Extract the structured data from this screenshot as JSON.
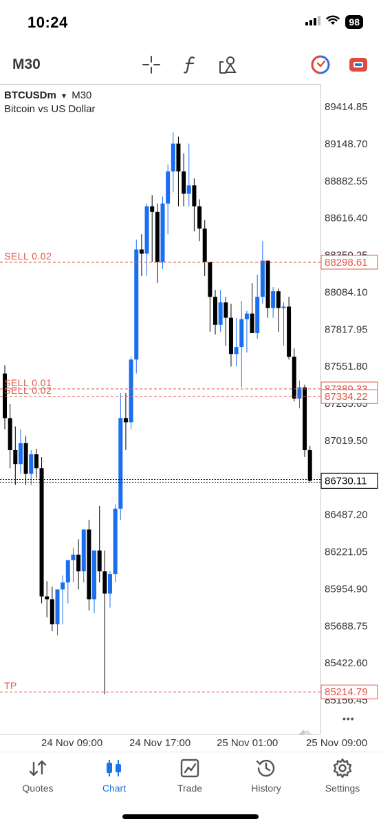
{
  "status_bar": {
    "time": "10:24",
    "battery": "98",
    "icons": [
      "cellular-signal-icon",
      "wifi-icon",
      "battery-icon"
    ]
  },
  "toolbar": {
    "timeframe": "M30",
    "icons": [
      "crosshair-icon",
      "function-icon",
      "objects-icon",
      "one-click-trading-icon",
      "account-icon"
    ]
  },
  "chart": {
    "symbol": "BTCUSDm",
    "dropdown_marker": "▾",
    "timeframe": "M30",
    "description": "Bitcoin vs US Dollar",
    "colors": {
      "bull": "#1a6ef0",
      "bear": "#000000",
      "order_line": "#e05545",
      "price_line": "#000000"
    },
    "price_labels": [
      "89414.85",
      "89148.70",
      "88882.55",
      "88616.40",
      "88350.25",
      "88084.10",
      "87817.95",
      "87551.80",
      "87285.65",
      "87019.50",
      "86487.20",
      "86221.05",
      "85954.90",
      "85688.75",
      "85422.60",
      "85156.45"
    ],
    "orders": [
      {
        "label": "SELL 0.02",
        "price_tag": "88298.61",
        "price": 88298.61
      },
      {
        "label": "SELL 0.01",
        "price_tag": "87389.33",
        "price": 87389.33
      },
      {
        "label": "SELL 0.02",
        "price_tag": "87334.22",
        "price": 87334.22
      },
      {
        "label": "TP",
        "price_tag": "85214.79",
        "price": 85214.79
      }
    ],
    "current_price": "86730.11",
    "time_labels": [
      "24 Nov 09:00",
      "24 Nov 17:00",
      "25 Nov 01:00",
      "25 Nov 09:00"
    ]
  },
  "chart_data": {
    "type": "candlestick",
    "symbol": "BTCUSDm",
    "timeframe": "M30",
    "ylim": [
      85100,
      89550
    ],
    "candles_ohlc": [
      [
        87500,
        87560,
        87100,
        87180
      ],
      [
        87180,
        87280,
        86820,
        86950
      ],
      [
        86950,
        87120,
        86700,
        86850
      ],
      [
        86850,
        87100,
        86780,
        87000
      ],
      [
        87000,
        87050,
        86700,
        86780
      ],
      [
        86780,
        86950,
        86700,
        86920
      ],
      [
        86920,
        86960,
        86750,
        86820
      ],
      [
        86820,
        86900,
        85850,
        85900
      ],
      [
        85900,
        86010,
        85750,
        85880
      ],
      [
        85880,
        85970,
        85650,
        85700
      ],
      [
        85700,
        85950,
        85620,
        85950
      ],
      [
        85950,
        86050,
        85700,
        86000
      ],
      [
        86000,
        86150,
        85850,
        86160
      ],
      [
        86160,
        86250,
        86000,
        86200
      ],
      [
        86200,
        86310,
        85950,
        86080
      ],
      [
        86080,
        86380,
        86000,
        86380
      ],
      [
        86380,
        86450,
        85800,
        85880
      ],
      [
        85880,
        86230,
        85780,
        86230
      ],
      [
        86230,
        86550,
        86000,
        86080
      ],
      [
        86080,
        86230,
        85200,
        85920
      ],
      [
        85920,
        86080,
        85820,
        86060
      ],
      [
        86060,
        86560,
        86000,
        86530
      ],
      [
        86530,
        87360,
        86450,
        87180
      ],
      [
        87180,
        87360,
        86950,
        87150
      ],
      [
        87150,
        87620,
        87100,
        87600
      ],
      [
        87600,
        88460,
        87500,
        88390
      ],
      [
        88390,
        88500,
        88200,
        88360
      ],
      [
        88360,
        88720,
        88200,
        88700
      ],
      [
        88700,
        88780,
        88300,
        88660
      ],
      [
        88660,
        88720,
        88150,
        88300
      ],
      [
        88300,
        88770,
        88250,
        88720
      ],
      [
        88720,
        89000,
        88500,
        88950
      ],
      [
        88950,
        89230,
        88800,
        89150
      ],
      [
        89150,
        89200,
        88700,
        88950
      ],
      [
        88950,
        89080,
        88700,
        88790
      ],
      [
        88790,
        89150,
        88700,
        88850
      ],
      [
        88850,
        88900,
        88520,
        88700
      ],
      [
        88700,
        88750,
        88450,
        88540
      ],
      [
        88540,
        88600,
        88200,
        88300
      ],
      [
        88300,
        88300,
        87800,
        88050
      ],
      [
        88050,
        88100,
        87780,
        87850
      ],
      [
        87850,
        88100,
        87800,
        88010
      ],
      [
        88010,
        88050,
        87700,
        87900
      ],
      [
        87900,
        88000,
        87550,
        87640
      ],
      [
        87640,
        87900,
        87550,
        87690
      ],
      [
        87690,
        88020,
        87400,
        87890
      ],
      [
        87890,
        87950,
        87650,
        87930
      ],
      [
        87930,
        88150,
        87800,
        87790
      ],
      [
        87790,
        88210,
        87750,
        88050
      ],
      [
        88050,
        88450,
        88000,
        88310
      ],
      [
        88310,
        88310,
        87900,
        87970
      ],
      [
        87970,
        88120,
        87900,
        88090
      ],
      [
        88090,
        88110,
        87800,
        87970
      ],
      [
        87970,
        88010,
        87700,
        87980
      ],
      [
        87980,
        88050,
        87600,
        87620
      ],
      [
        87620,
        87680,
        87300,
        87320
      ],
      [
        87320,
        87450,
        87250,
        87400
      ],
      [
        87400,
        87420,
        86900,
        86950
      ],
      [
        86950,
        86980,
        86720,
        86730
      ]
    ],
    "price_lines": [
      88298.61,
      87389.33,
      87334.22,
      85214.79
    ],
    "current_price": 86730.11,
    "grid": false
  },
  "more_button": "•••",
  "tabs": [
    {
      "label": "Quotes",
      "icon": "quotes-arrows-icon",
      "active": false
    },
    {
      "label": "Chart",
      "icon": "chart-candles-icon",
      "active": true
    },
    {
      "label": "Trade",
      "icon": "trade-chart-icon",
      "active": false
    },
    {
      "label": "History",
      "icon": "history-clock-icon",
      "active": false
    },
    {
      "label": "Settings",
      "icon": "settings-gear-icon",
      "active": false
    }
  ]
}
